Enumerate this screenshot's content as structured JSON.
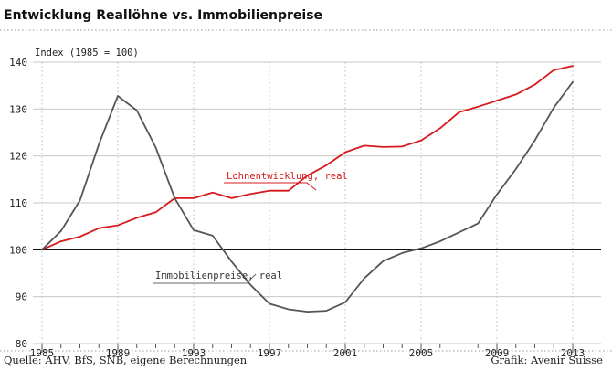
{
  "chart_data": {
    "type": "line",
    "title": "Entwicklung Reallöhne vs. Immobilienpreise",
    "ylabel": "Index (1985 = 100)",
    "xlabel": "",
    "ylim": [
      80,
      140
    ],
    "xlim": [
      1985,
      2013.3
    ],
    "yticks": [
      80,
      90,
      100,
      110,
      120,
      130,
      140
    ],
    "xtick_labels": [
      "1985",
      "1989",
      "1993",
      "1997",
      "2001",
      "2005",
      "2009",
      "2013"
    ],
    "xtick_values": [
      1985,
      1989,
      1993,
      1997,
      2001,
      2005,
      2009,
      2013
    ],
    "reference_line": 100,
    "grid": "horizontal",
    "series": [
      {
        "name": "Lohnentwicklung, real",
        "color": "#d7191c",
        "x": [
          1985,
          1986,
          1987,
          1988,
          1989,
          1990,
          1991,
          1992,
          1993,
          1994,
          1995,
          1996,
          1997,
          1998,
          1999,
          2000,
          2001,
          2002,
          2003,
          2004,
          2005,
          2006,
          2007,
          2008,
          2009,
          2010,
          2011,
          2012,
          2013
        ],
        "values": [
          100,
          101.8,
          102.8,
          104.6,
          105.2,
          106.8,
          108,
          111,
          111,
          112.2,
          111,
          111.9,
          112.6,
          112.6,
          115.8,
          118,
          120.8,
          122.2,
          121.9,
          122,
          123.3,
          125.9,
          129.3,
          130.5,
          131.8,
          133.1,
          135.2,
          138.3,
          139.2
        ]
      },
      {
        "name": "Immobilienpreise, real",
        "color": "#555555",
        "x": [
          1985,
          1986,
          1987,
          1988,
          1989,
          1990,
          1991,
          1992,
          1993,
          1994,
          1995,
          1996,
          1997,
          1998,
          1999,
          2000,
          2001,
          2002,
          2003,
          2004,
          2005,
          2006,
          2007,
          2008,
          2009,
          2010,
          2011,
          2012,
          2013
        ],
        "values": [
          100,
          104,
          110.5,
          122.5,
          132.8,
          129.7,
          121.8,
          111,
          104.2,
          103,
          97.5,
          92.5,
          88.5,
          87.3,
          86.8,
          87,
          88.8,
          93.9,
          97.6,
          99.3,
          100.3,
          101.8,
          103.7,
          105.6,
          111.8,
          117.2,
          123.3,
          130.3,
          135.8
        ]
      }
    ]
  },
  "source": "Quelle: AHV, BfS, SNB, eigene Berechnungen",
  "credit": "Grafik: Avenir Suisse"
}
